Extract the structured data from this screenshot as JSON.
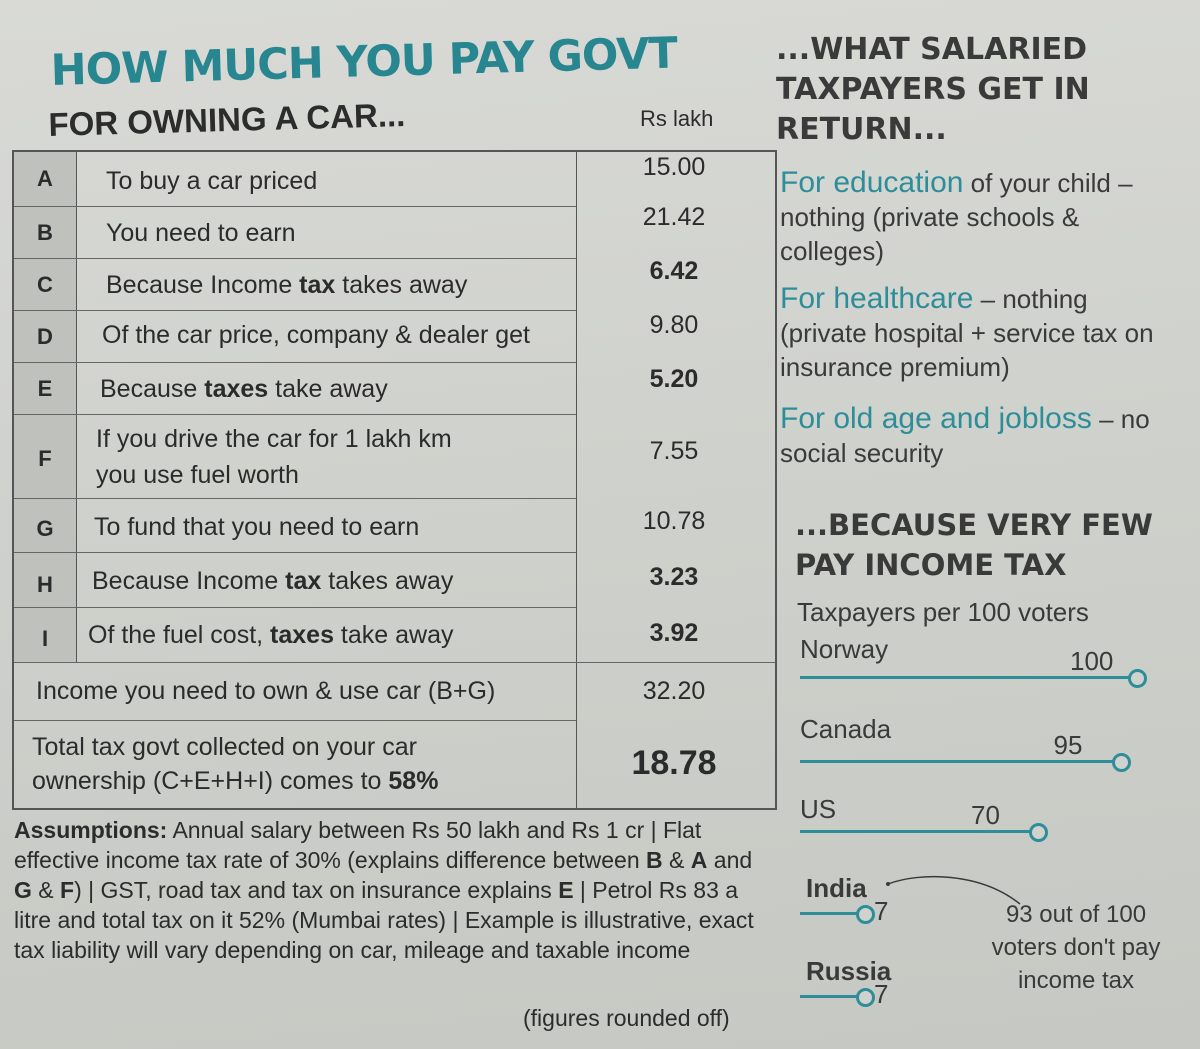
{
  "left": {
    "headline": "HOW MUCH YOU PAY GOVT",
    "subhead": "FOR OWNING A CAR...",
    "unit": "Rs lakh",
    "rows": [
      {
        "letter": "A",
        "label": "To buy a car priced",
        "value": "15.00"
      },
      {
        "letter": "B",
        "label": "You need to earn",
        "value": "21.42"
      },
      {
        "letter": "C",
        "label_pre": "Because Income ",
        "label_bold": "tax",
        "label_post": " takes away",
        "value": "6.42"
      },
      {
        "letter": "D",
        "label": "Of the car price, company & dealer get",
        "value": "9.80"
      },
      {
        "letter": "E",
        "label_pre": "Because ",
        "label_bold": "taxes",
        "label_post": " take away",
        "value": "5.20"
      },
      {
        "letter": "F",
        "label_line1": "If you drive the car for 1 lakh km",
        "label_line2": "you use fuel worth",
        "value": "7.55"
      },
      {
        "letter": "G",
        "label": "To fund that you need to earn",
        "value": "10.78"
      },
      {
        "letter": "H",
        "label_pre": "Because Income ",
        "label_bold": "tax",
        "label_post": " takes away",
        "value": "3.23"
      },
      {
        "letter": "I",
        "label_pre": "Of the fuel cost, ",
        "label_bold": "taxes",
        "label_post": " take away",
        "value": "3.92"
      }
    ],
    "income_row": {
      "label": "Income you need to own & use car (B+G)",
      "value": "32.20"
    },
    "total_row": {
      "line1": "Total tax govt collected on your car",
      "line2_pre": "ownership (C+E+H+I) comes to ",
      "line2_bold": "58%",
      "value": "18.78"
    },
    "assumptions_label": "Assumptions:",
    "assumptions": {
      "p1": " Annual salary between Rs 50 lakh and Rs 1 cr | Flat effective income tax rate of 30% (explains difference between ",
      "b1": "B",
      "p2": " & ",
      "b2": "A",
      "p3": " and ",
      "b3": "G",
      "p4": " & ",
      "b4": "F",
      "p5": ") | GST, road tax and tax on insurance explains ",
      "b5": "E",
      "p6": " | Petrol Rs 83 a litre and total tax on it 52% (Mumbai rates) | Example is illustrative, exact tax liability will vary depending on car, mileage and taxable income"
    },
    "rounded_note": "(figures rounded off)"
  },
  "right": {
    "headline": "...WHAT SALARIED TAXPAYERS GET IN RETURN...",
    "items": [
      {
        "teal": "For education",
        "text": " of your child – nothing (private schools & colleges)"
      },
      {
        "teal": "For healthcare",
        "text": " – nothing (private hospital + service tax on insurance premium)"
      },
      {
        "teal": "For old age and jobloss",
        "text": " – no social security"
      }
    ],
    "headline2": "...BECAUSE VERY FEW PAY INCOME TAX",
    "subtitle": "Taxpayers per 100 voters",
    "chart_data": {
      "type": "bar",
      "categories": [
        "Norway",
        "Canada",
        "US",
        "India",
        "Russia"
      ],
      "values": [
        100,
        95,
        70,
        7,
        7
      ],
      "labels": [
        "100",
        "95",
        "70",
        "7",
        "7"
      ],
      "xlim": [
        0,
        100
      ]
    },
    "callout": "93 out of 100 voters don't pay income tax",
    "accent": "#2d8d99"
  }
}
